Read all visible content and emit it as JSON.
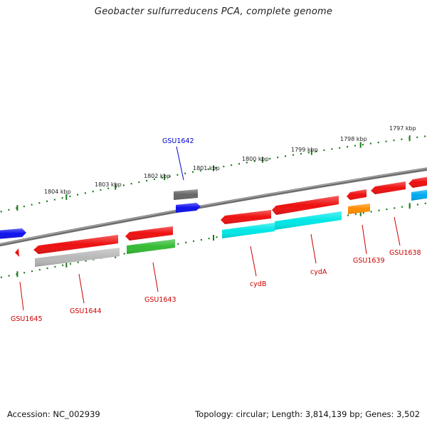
{
  "title": "Geobacter sulfurreducens PCA, complete genome",
  "footer": {
    "accession": "Accession: NC_002939",
    "topology": "Topology: circular; Length: 3,814,139 bp; Genes: 3,502"
  },
  "colors": {
    "backbone": "#808080",
    "tick_dots": "#1a7a1a",
    "label_default": "#cc0000",
    "label_highlight": "#0000cc"
  },
  "ruler_labels": [
    "1797 kbp",
    "1798 kbp",
    "1799 kbp",
    "1800 kbp",
    "1801 kbp",
    "1802 kbp",
    "1803 kbp",
    "1804 kbp"
  ],
  "genes": [
    {
      "id": "g-left-blue",
      "label": "",
      "color": "#1010ee",
      "lane": "fwd-outer"
    },
    {
      "id": "g-small-red",
      "label": "",
      "color": "#ee1010",
      "lane": "rev-tiny"
    },
    {
      "id": "GSU1645",
      "label": "GSU1645",
      "color": "#ee1010"
    },
    {
      "id": "GSU1644",
      "label": "GSU1644",
      "color": "#ee1010",
      "partner_color": "#b8b8b8"
    },
    {
      "id": "GSU1643",
      "label": "GSU1643",
      "color": "#ee1010",
      "partner_color": "#33bb33"
    },
    {
      "id": "GSU1642",
      "label": "GSU1642",
      "color": "#666666",
      "partner_color": "#1010ee",
      "label_color": "#0000cc"
    },
    {
      "id": "cydB",
      "label": "cydB",
      "color": "#ee1010",
      "partner_color": "#00e6e6"
    },
    {
      "id": "cydA",
      "label": "cydA",
      "color": "#ee1010",
      "partner_color": "#00e6e6"
    },
    {
      "id": "GSU1639",
      "label": "GSU1639",
      "color": "#ee1010",
      "partner_color": "#ff8c00"
    },
    {
      "id": "GSU1638",
      "label": "GSU1638",
      "color": "#ee1010",
      "partner_color": "#00aaee"
    }
  ]
}
